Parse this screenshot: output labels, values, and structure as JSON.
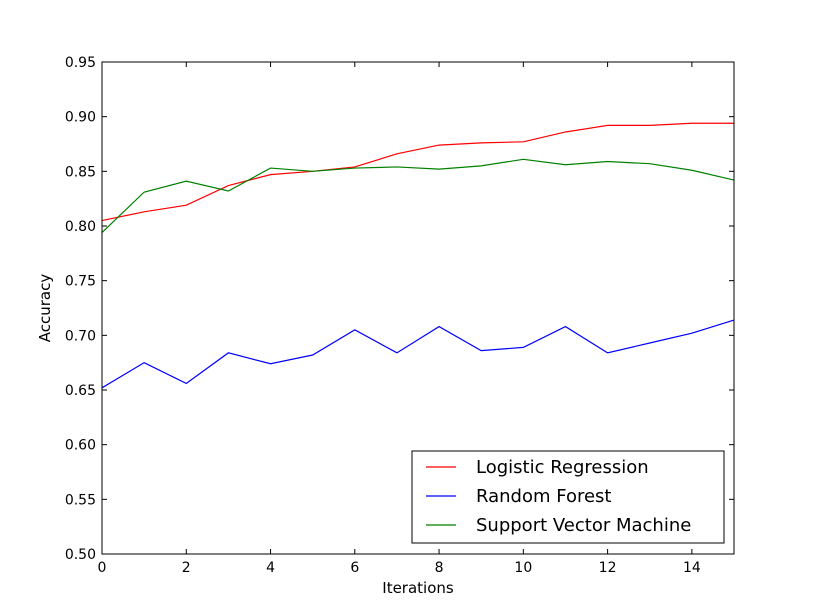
{
  "chart_data": {
    "type": "line",
    "title": "",
    "xlabel": "Iterations",
    "ylabel": "Accuracy",
    "xlim": [
      0,
      15
    ],
    "ylim": [
      0.5,
      0.95
    ],
    "x_ticks": [
      "0",
      "2",
      "4",
      "6",
      "8",
      "10",
      "12",
      "14"
    ],
    "y_ticks": [
      "0.50",
      "0.55",
      "0.60",
      "0.65",
      "0.70",
      "0.75",
      "0.80",
      "0.85",
      "0.90",
      "0.95"
    ],
    "grid": false,
    "legend_position": "lower-right",
    "x": [
      0,
      1,
      2,
      3,
      4,
      5,
      6,
      7,
      8,
      9,
      10,
      11,
      12,
      13,
      14,
      15
    ],
    "series": [
      {
        "name": "Logistic Regression",
        "color": "#ff0000",
        "values": [
          0.805,
          0.813,
          0.819,
          0.837,
          0.847,
          0.85,
          0.854,
          0.866,
          0.874,
          0.876,
          0.877,
          0.886,
          0.892,
          0.892,
          0.894,
          0.894
        ]
      },
      {
        "name": "Random Forest",
        "color": "#0000ff",
        "values": [
          0.652,
          0.675,
          0.656,
          0.684,
          0.674,
          0.682,
          0.705,
          0.684,
          0.708,
          0.686,
          0.689,
          0.708,
          0.684,
          0.693,
          0.702,
          0.714
        ]
      },
      {
        "name": "Support Vector Machine",
        "color": "#008000",
        "values": [
          0.794,
          0.831,
          0.841,
          0.832,
          0.853,
          0.85,
          0.853,
          0.854,
          0.852,
          0.855,
          0.861,
          0.856,
          0.859,
          0.857,
          0.851,
          0.842
        ]
      }
    ]
  }
}
